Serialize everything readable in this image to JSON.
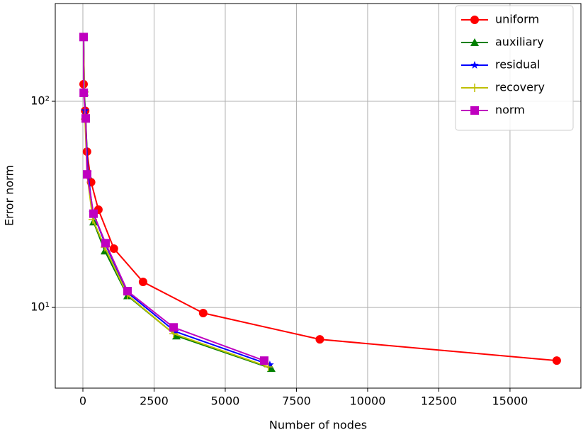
{
  "chart_data": {
    "type": "line",
    "xlabel": "Number of nodes",
    "ylabel": "Error norm",
    "xlim": [
      -970,
      17490
    ],
    "xticks": [
      0,
      2500,
      5000,
      7500,
      10000,
      12500,
      15000
    ],
    "ylim": [
      4.06,
      298
    ],
    "yscale": "log",
    "yticks": [
      {
        "value": 10,
        "label": "10¹"
      },
      {
        "value": 100,
        "label": "10²"
      }
    ],
    "grid": true,
    "legend": "upper right",
    "series": [
      {
        "name": "uniform",
        "color": "#ff0000",
        "marker": "circle",
        "x": [
          25,
          81,
          145,
          289,
          545,
          1089,
          2113,
          4225,
          8321,
          16641
        ],
        "values": [
          121,
          90,
          57,
          40.5,
          29.8,
          19.3,
          13.3,
          9.39,
          7.0,
          5.52
        ]
      },
      {
        "name": "auxiliary",
        "color": "#008000",
        "marker": "triangle",
        "x": [
          25,
          50,
          100,
          174,
          373,
          771,
          1567,
          3284,
          6617
        ],
        "values": [
          205,
          111,
          82,
          44,
          26,
          18.8,
          11.4,
          7.28,
          5.06
        ]
      },
      {
        "name": "residual",
        "color": "#0000ff",
        "marker": "star",
        "x": [
          25,
          50,
          75,
          174,
          348,
          796,
          1567,
          3234,
          6567
        ],
        "values": [
          205,
          111,
          90,
          45.3,
          28.9,
          20.2,
          11.8,
          7.65,
          5.27
        ]
      },
      {
        "name": "recovery",
        "color": "#bfbf00",
        "marker": "plus",
        "x": [
          25,
          50,
          75,
          149,
          348,
          771,
          1567,
          3184,
          6517
        ],
        "values": [
          205,
          111,
          82,
          44,
          26.7,
          19.6,
          11.5,
          7.46,
          5.15
        ]
      },
      {
        "name": "norm",
        "color": "#bf00bf",
        "marker": "square",
        "x": [
          25,
          30,
          100,
          149,
          373,
          796,
          1567,
          3184,
          6368
        ],
        "values": [
          205,
          110,
          82.6,
          44.2,
          28.5,
          20.5,
          12,
          8.0,
          5.52
        ]
      }
    ]
  }
}
